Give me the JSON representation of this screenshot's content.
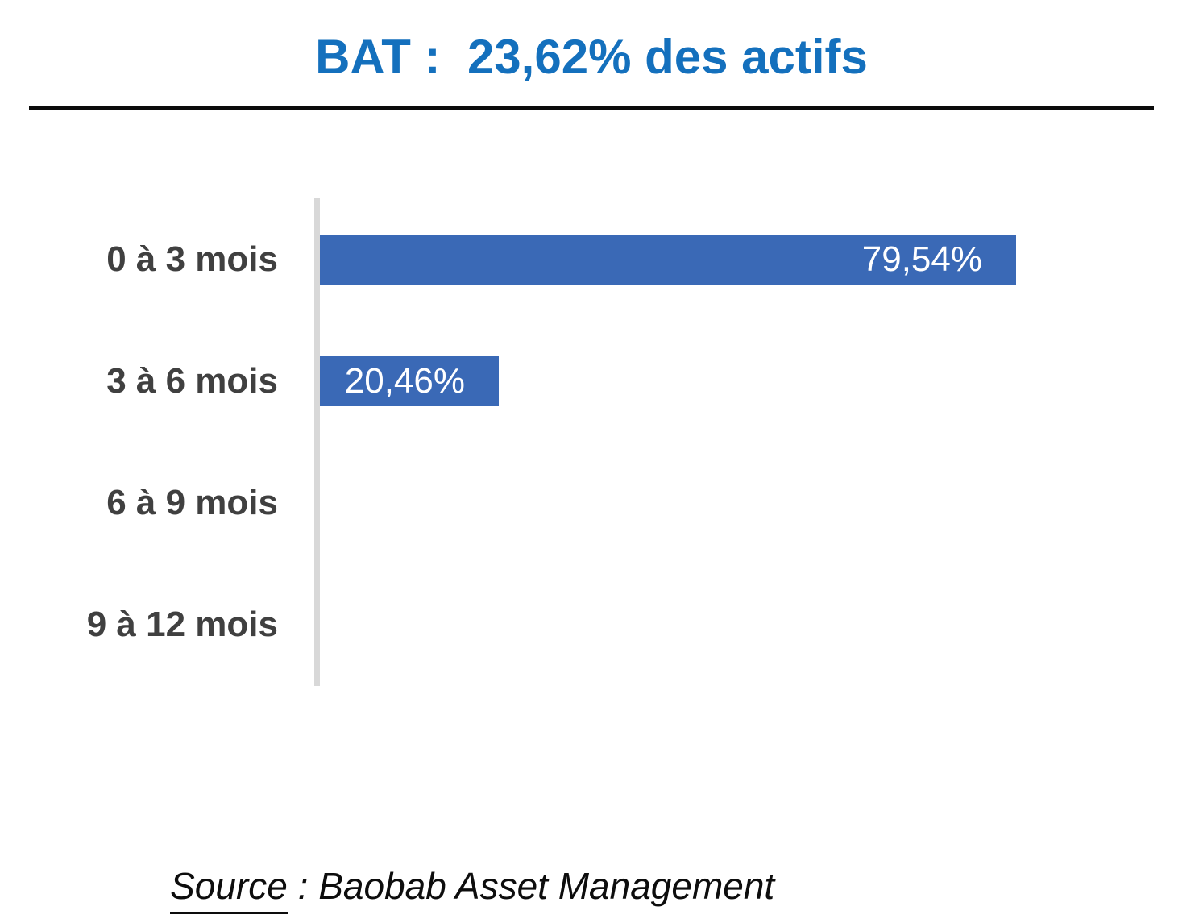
{
  "title": "BAT :  23,62% des actifs",
  "title_color": "#1470BD",
  "source": {
    "label": "Source",
    "rest": " : Baobab Asset Management"
  },
  "chart_data": {
    "type": "bar",
    "orientation": "horizontal",
    "title": "BAT :  23,62% des actifs",
    "categories": [
      "0 à 3 mois",
      "3 à 6 mois",
      "6 à 9 mois",
      "9 à 12 mois"
    ],
    "values": [
      79.54,
      20.46,
      0,
      0
    ],
    "value_labels": [
      "79,54%",
      "20,46%",
      "",
      ""
    ],
    "xlim": [
      0,
      100
    ],
    "grid": false,
    "legend": false,
    "bar_color": "#3A69B6",
    "axis_line_color": "#D8D8D8",
    "category_label_color": "#404040",
    "value_label_color": "#FFFFFF"
  }
}
